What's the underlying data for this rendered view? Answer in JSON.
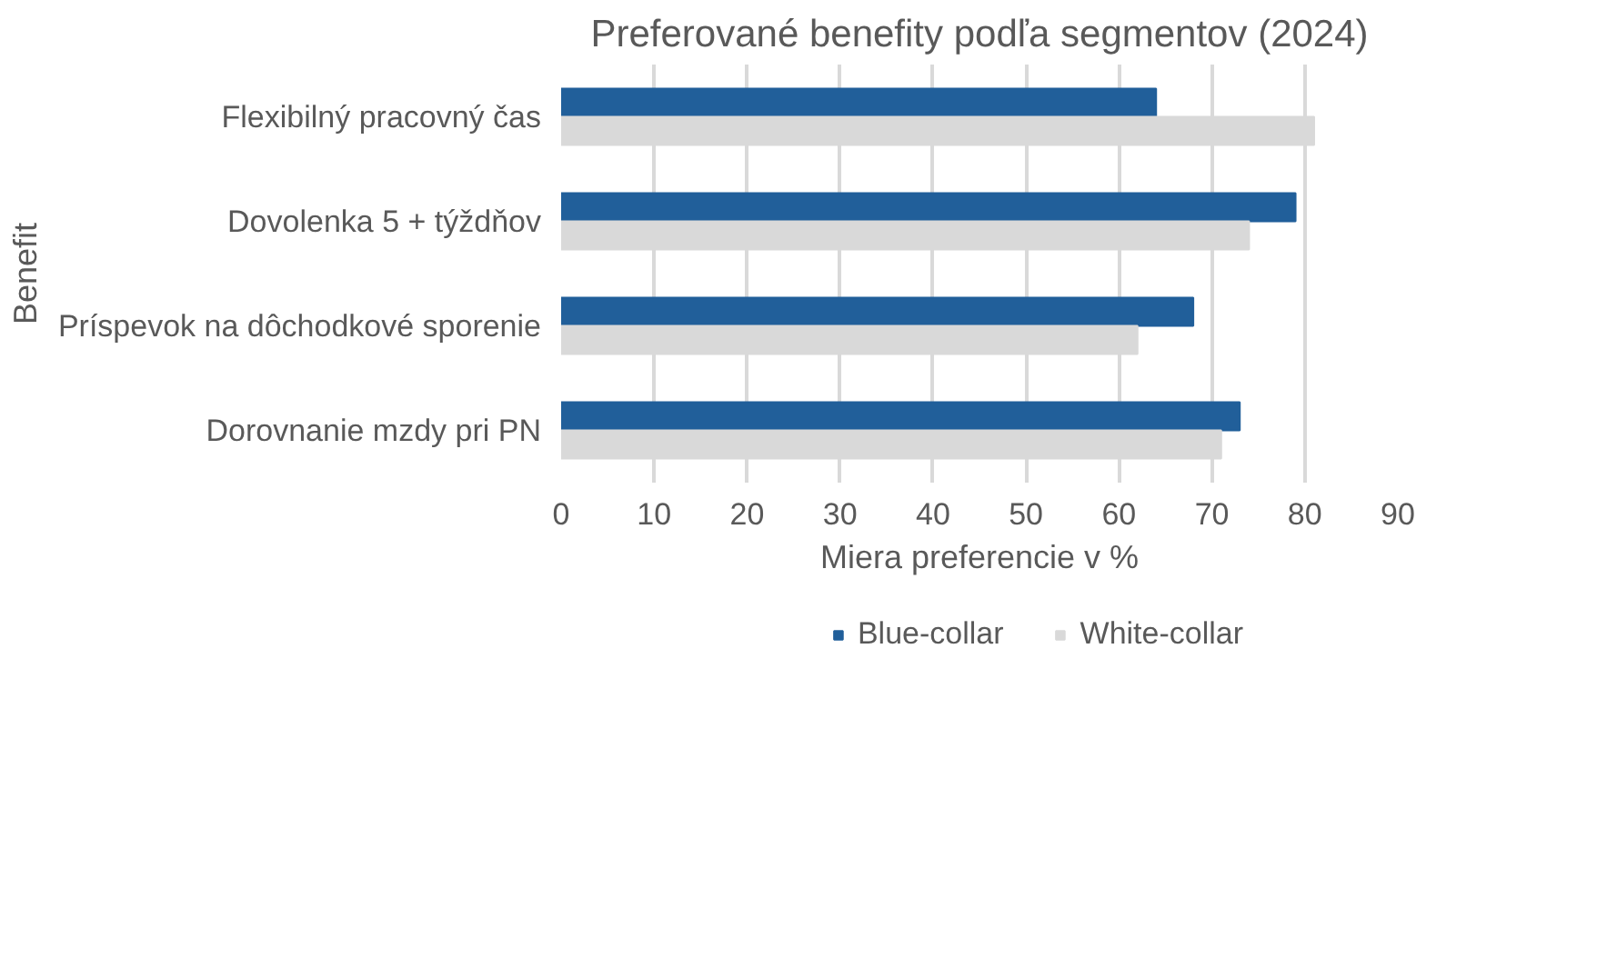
{
  "chart_data": {
    "type": "bar",
    "orientation": "horizontal",
    "title": "Preferované benefity podľa segmentov (2024)",
    "xlabel": "Miera preferencie v %",
    "ylabel": "Benefit",
    "categories": [
      "Flexibilný pracovný čas",
      "Dovolenka 5 + týždňov",
      "Príspevok na dôchodkové sporenie",
      "Dorovnanie mzdy pri PN"
    ],
    "series": [
      {
        "name": "Blue-collar",
        "color": "#215f9a",
        "values": [
          64,
          79,
          68,
          73
        ]
      },
      {
        "name": "White-collar",
        "color": "#d9d9d9",
        "values": [
          81,
          74,
          62,
          71
        ]
      }
    ],
    "xlim": [
      0,
      90
    ],
    "xticks": [
      0,
      10,
      20,
      30,
      40,
      50,
      60,
      70,
      80,
      90
    ],
    "grid": "x",
    "legend": "bottom"
  }
}
